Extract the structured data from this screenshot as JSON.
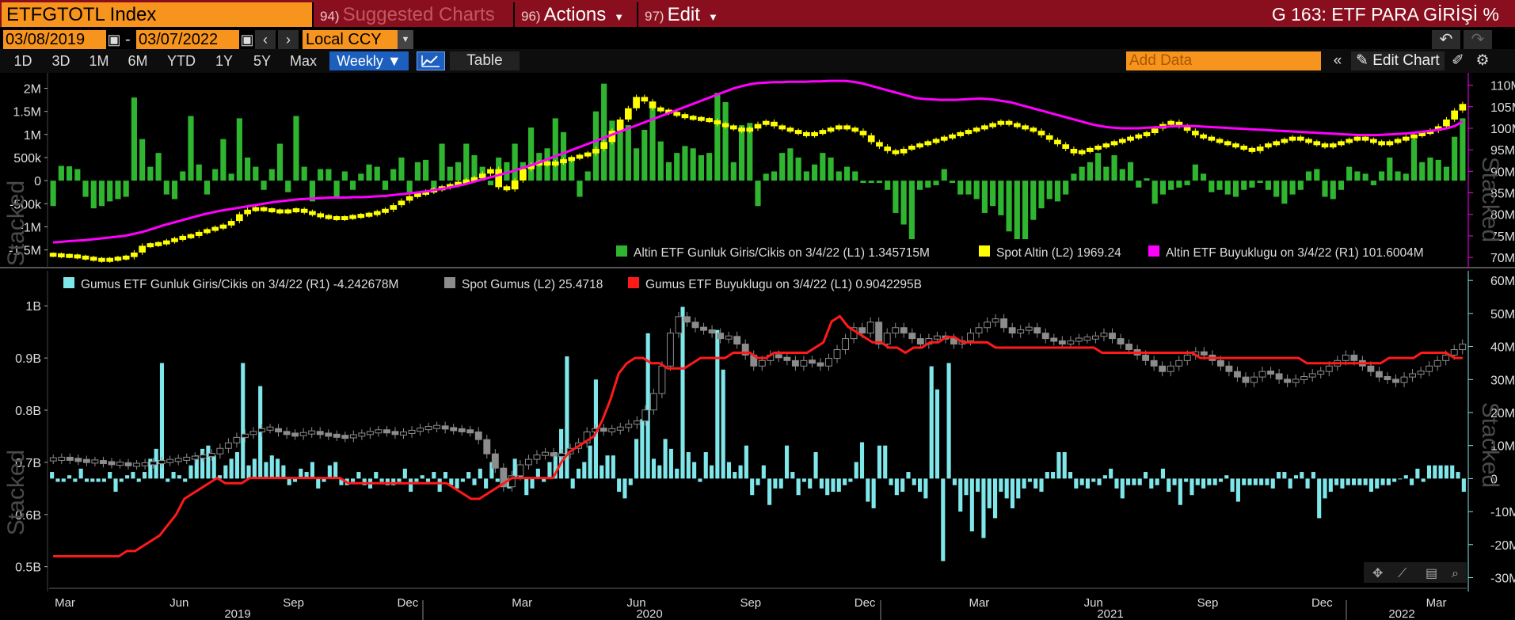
{
  "header": {
    "ticker": "ETFGTOTL Index",
    "menus": [
      {
        "num": "94)",
        "label": "Suggested Charts"
      },
      {
        "num": "96)",
        "label": "Actions"
      },
      {
        "num": "97)",
        "label": "Edit"
      }
    ],
    "title": "G 163: ETF PARA GİRİŞİ %"
  },
  "range": {
    "start": "03/08/2019",
    "end": "03/07/2022",
    "sep": "-",
    "currency": "Local CCY"
  },
  "toolbar": {
    "periods": [
      "1D",
      "3D",
      "1M",
      "6M",
      "YTD",
      "1Y",
      "5Y",
      "Max"
    ],
    "frequency": "Weekly ▼",
    "table_label": "Table",
    "add_data_placeholder": "Add Data",
    "edit_chart_label": "Edit Chart",
    "collapse_label": "«"
  },
  "colors": {
    "gold_flow": "#2fb52f",
    "gold_spot": "#ffff00",
    "gold_size": "#ff00ff",
    "silver_flow": "#7fe6ea",
    "silver_spot": "#8c8c8c",
    "silver_size": "#ff1a1a"
  },
  "chart_data": [
    {
      "type": "bar",
      "panel": "top",
      "stacked_label": "Stacked",
      "left_ticks": [
        "2M",
        "1.5M",
        "1M",
        "500k",
        "0",
        "-500k",
        "-1M",
        "-1.5M"
      ],
      "right_ticks": [
        "110M",
        "105M",
        "100M",
        "95M",
        "90M",
        "85M",
        "80M",
        "75M",
        "70M"
      ],
      "legend": [
        "Altin ETF Gunluk Giris/Cikis on 3/4/22 (L1) 1.345715M",
        "Spot Altin (L2) 1969.24",
        "Altin ETF Buyuklugu on 3/4/22 (R1) 101.6004M"
      ],
      "flow_values": [
        -0.55,
        0.32,
        0.31,
        0.25,
        -0.35,
        -0.6,
        -0.55,
        -0.45,
        -0.4,
        -0.35,
        1.8,
        0.9,
        0.3,
        0.6,
        -0.3,
        -0.4,
        0.2,
        1.4,
        0.35,
        -0.3,
        0.25,
        0.9,
        0.15,
        1.35,
        0.5,
        0.3,
        -0.2,
        0.25,
        0.8,
        -0.25,
        1.4,
        0.3,
        -0.45,
        0.25,
        0.25,
        -0.35,
        0.2,
        -0.2,
        0.15,
        0.35,
        0.3,
        -0.2,
        0.25,
        0.5,
        -0.25,
        0.4,
        0.45,
        -0.25,
        0.8,
        0.3,
        0.4,
        0.8,
        0.55,
        0.3,
        -0.1,
        0.5,
        0.4,
        0.8,
        0.4,
        1.15,
        0.6,
        0.7,
        1.35,
        1.05,
        0.5,
        -0.35,
        0.2,
        1.5,
        2.1,
        1.3,
        1.1,
        1.2,
        0.7,
        1.1,
        1.6,
        0.85,
        0.4,
        0.6,
        0.75,
        0.7,
        0.55,
        0.6,
        1.9,
        1.7,
        0.4,
        1.2,
        1.25,
        -0.55,
        0.15,
        0.2,
        0.6,
        0.7,
        0.5,
        0.2,
        0.35,
        0.6,
        0.5,
        0.2,
        0.3,
        0.2,
        -0.05,
        -0.05,
        -0.05,
        -0.2,
        -0.7,
        -0.95,
        -1.35,
        -0.2,
        -0.15,
        -0.1,
        0.25,
        -0.05,
        -0.3,
        -0.3,
        -0.4,
        -0.7,
        -0.55,
        -0.75,
        -1.1,
        -1.3,
        -1.45,
        -0.85,
        -0.6,
        -0.4,
        -0.45,
        -0.3,
        0.15,
        0.3,
        0.4,
        0.6,
        0.3,
        0.55,
        0.25,
        0.4,
        -0.15,
        0.05,
        -0.5,
        -0.3,
        -0.2,
        -0.15,
        -0.1,
        0.35,
        0.15,
        -0.25,
        -0.2,
        -0.3,
        -0.35,
        -0.2,
        -0.15,
        -0.05,
        -0.2,
        -0.35,
        -0.5,
        -0.3,
        -0.2,
        0.2,
        0.25,
        -0.35,
        -0.4,
        -0.2,
        0.3,
        0.2,
        0.15,
        -0.1,
        0.2,
        0.5,
        0.2,
        0.15,
        0.9,
        0.4,
        0.5,
        0.45,
        0.3,
        0.95,
        1.35
      ],
      "spot_gold": [
        1300,
        1295,
        1295,
        1290,
        1285,
        1280,
        1275,
        1280,
        1285,
        1290,
        1310,
        1340,
        1345,
        1350,
        1360,
        1370,
        1380,
        1385,
        1400,
        1410,
        1420,
        1430,
        1450,
        1480,
        1500,
        1505,
        1500,
        1495,
        1490,
        1495,
        1500,
        1490,
        1480,
        1470,
        1465,
        1460,
        1465,
        1470,
        1475,
        1480,
        1490,
        1500,
        1520,
        1540,
        1560,
        1570,
        1580,
        1590,
        1600,
        1610,
        1620,
        1630,
        1640,
        1660,
        1680,
        1600,
        1590,
        1630,
        1680,
        1700,
        1710,
        1700,
        1710,
        1720,
        1730,
        1740,
        1750,
        1770,
        1800,
        1850,
        1900,
        1950,
        2000,
        1980,
        1950,
        1940,
        1930,
        1920,
        1910,
        1905,
        1900,
        1895,
        1880,
        1870,
        1860,
        1850,
        1860,
        1880,
        1890,
        1870,
        1860,
        1850,
        1840,
        1830,
        1840,
        1850,
        1860,
        1870,
        1860,
        1850,
        1830,
        1800,
        1780,
        1760,
        1750,
        1770,
        1780,
        1790,
        1800,
        1810,
        1820,
        1830,
        1840,
        1850,
        1860,
        1870,
        1880,
        1890,
        1880,
        1870,
        1860,
        1850,
        1830,
        1810,
        1790,
        1770,
        1750,
        1760,
        1770,
        1780,
        1790,
        1800,
        1810,
        1820,
        1830,
        1840,
        1860,
        1880,
        1890,
        1870,
        1850,
        1830,
        1820,
        1810,
        1800,
        1790,
        1780,
        1770,
        1760,
        1780,
        1790,
        1800,
        1810,
        1820,
        1810,
        1800,
        1790,
        1780,
        1790,
        1800,
        1810,
        1820,
        1810,
        1800,
        1790,
        1800,
        1810,
        1820,
        1830,
        1840,
        1850,
        1870,
        1900,
        1940,
        1969
      ],
      "etf_size": [
        73.5,
        73.6,
        73.8,
        73.9,
        74.0,
        74.2,
        74.4,
        74.6,
        74.8,
        75.0,
        75.4,
        75.8,
        76.3,
        76.9,
        77.5,
        78.0,
        78.5,
        79.0,
        79.5,
        80.0,
        80.4,
        80.8,
        81.1,
        81.4,
        81.7,
        82.0,
        82.3,
        82.6,
        82.9,
        83.1,
        83.3,
        83.5,
        83.6,
        83.7,
        83.8,
        83.9,
        83.9,
        83.9,
        84.0,
        84.0,
        84.1,
        84.2,
        84.3,
        84.5,
        84.7,
        84.9,
        85.1,
        85.3,
        85.6,
        85.9,
        86.2,
        86.6,
        87.0,
        87.5,
        88.0,
        88.5,
        89.0,
        89.5,
        90.0,
        90.6,
        91.2,
        91.8,
        92.5,
        93.2,
        93.9,
        94.6,
        95.3,
        96.0,
        96.7,
        97.4,
        98.1,
        98.8,
        99.5,
        100.2,
        100.9,
        101.6,
        102.3,
        103.0,
        103.7,
        104.4,
        105.1,
        105.8,
        106.5,
        107.2,
        107.9,
        108.6,
        109.3,
        109.8,
        110.2,
        110.5,
        110.6,
        110.7,
        110.7,
        110.8,
        110.8,
        110.8,
        110.9,
        110.9,
        111.0,
        111.0,
        111.0,
        110.8,
        110.5,
        110.0,
        109.5,
        109.0,
        108.5,
        108.0,
        107.5,
        107.0,
        106.8,
        106.7,
        106.6,
        106.6,
        106.6,
        106.7,
        106.8,
        106.9,
        106.8,
        106.6,
        106.3,
        106.0,
        105.5,
        105.0,
        104.5,
        104.0,
        103.5,
        103.0,
        102.5,
        102.0,
        101.5,
        101.0,
        100.6,
        100.3,
        100.1,
        100.0,
        100.0,
        100.0,
        100.1,
        100.2,
        100.3,
        100.4,
        100.5,
        100.5,
        100.5,
        100.4,
        100.3,
        100.2,
        100.1,
        100.0,
        99.9,
        99.8,
        99.7,
        99.6,
        99.5,
        99.4,
        99.3,
        99.2,
        99.1,
        99.0,
        98.9,
        98.8,
        98.7,
        98.6,
        98.5,
        98.4,
        98.4,
        98.4,
        98.5,
        98.6,
        98.7,
        98.8,
        99.0,
        99.2,
        99.4,
        99.7,
        100.0,
        100.5,
        101.6
      ],
      "spot_range": [
        1250,
        2100
      ],
      "flow_range": [
        -1.85,
        2.3
      ],
      "size_range": [
        68,
        112.5
      ]
    },
    {
      "type": "bar",
      "panel": "bottom",
      "stacked_label": "Stacked",
      "left_ticks": [
        "1B",
        "0.9B",
        "0.8B",
        "0.7B",
        "0.6B",
        "0.5B"
      ],
      "right_ticks": [
        "60M",
        "50M",
        "40M",
        "30M",
        "20M",
        "10M",
        "0",
        "-10M",
        "-20M",
        "-30M"
      ],
      "legend": [
        "Gumus ETF Gunluk Giris/Cikis on 3/4/22 (R1) -4.242678M",
        "Spot Gumus (L2) 25.4718",
        "Gumus ETF Buyuklugu on 3/4/22 (L1) 0.9042295B"
      ],
      "flow_values": [
        2,
        -1,
        -1,
        1,
        -1,
        3,
        -1,
        -1,
        -1,
        -1,
        2,
        -4,
        -1,
        1,
        2,
        -1,
        2,
        6,
        9,
        35,
        -1,
        2,
        1,
        -1,
        4,
        7,
        9,
        10,
        7,
        1,
        4,
        6,
        8,
        35,
        4,
        6,
        28,
        5,
        7,
        6,
        4,
        -2,
        -1,
        3,
        2,
        5,
        -3,
        -1,
        4,
        5,
        -2,
        -2,
        -1,
        2,
        -2,
        -3,
        2,
        -1,
        -2,
        -2,
        -1,
        3,
        -4,
        -1,
        1,
        -1,
        2,
        -4,
        2,
        -2,
        -3,
        -1,
        2,
        -2,
        3,
        -3,
        5,
        -1,
        2,
        -3,
        6,
        2,
        -5,
        -3,
        3,
        -1,
        5,
        8,
        15,
        37,
        -3,
        3,
        5,
        10,
        30,
        4,
        7,
        7,
        -4,
        -6,
        -2,
        12,
        18,
        44,
        6,
        4,
        12,
        9,
        3,
        52,
        8,
        5,
        -1,
        8,
        4,
        45,
        33,
        5,
        2,
        4,
        10,
        -5,
        -2,
        4,
        -8,
        -3,
        -3,
        10,
        2,
        -5,
        -1,
        -3,
        8,
        -3,
        -5,
        -4,
        -4,
        -2,
        -1,
        5,
        11,
        -7,
        -9,
        10,
        10,
        -2,
        -5,
        -4,
        2,
        -2,
        -4,
        -6,
        34,
        27,
        -25,
        35,
        -2,
        -10,
        -5,
        -16,
        -4,
        -18,
        -9,
        -12,
        -4,
        -6,
        -9,
        -6,
        -3,
        -1,
        -3,
        -4,
        2,
        2,
        8,
        8,
        2,
        -3,
        -2,
        -3,
        -1,
        -2,
        1,
        3,
        -3,
        -6,
        -2,
        -2,
        -2,
        2,
        -3,
        -2,
        3,
        -4,
        -2,
        -8,
        -1,
        -5,
        -2,
        -3,
        -2,
        -2,
        -1,
        1,
        -4,
        -7,
        -2,
        -2,
        -2,
        -2,
        -2,
        -3,
        2,
        2,
        -3,
        1,
        2,
        -3,
        2,
        -12,
        -6,
        -4,
        -2,
        -3,
        -2,
        -2,
        -2,
        -2,
        -4,
        -3,
        -2,
        -2,
        -1,
        0,
        1,
        -2,
        3,
        -1,
        4,
        4,
        4,
        4,
        4,
        2,
        -4
      ],
      "spot_silver": [
        15.0,
        15.1,
        15.0,
        14.9,
        14.8,
        14.8,
        14.7,
        14.6,
        14.6,
        14.5,
        14.5,
        14.6,
        14.7,
        14.8,
        14.9,
        15.0,
        15.1,
        15.2,
        15.3,
        15.5,
        16.0,
        16.5,
        17.0,
        17.3,
        17.5,
        17.8,
        17.8,
        17.5,
        17.3,
        17.2,
        17.4,
        17.5,
        17.3,
        17.2,
        17.1,
        17.0,
        17.2,
        17.3,
        17.5,
        17.6,
        17.5,
        17.3,
        17.4,
        17.6,
        17.8,
        17.9,
        18.0,
        17.8,
        17.7,
        17.6,
        17.5,
        16.8,
        15.5,
        14.2,
        12.5,
        13.5,
        14.5,
        15.0,
        15.4,
        15.6,
        15.3,
        15.5,
        16.0,
        16.5,
        17.5,
        17.8,
        17.6,
        17.7,
        17.9,
        18.2,
        18.5,
        19.5,
        21.0,
        23.5,
        26.5,
        28.0,
        27.5,
        27.0,
        26.8,
        26.5,
        26.0,
        26.2,
        25.5,
        24.5,
        23.5,
        24.0,
        24.5,
        24.3,
        24.0,
        23.5,
        24.0,
        23.8,
        23.5,
        24.2,
        25.0,
        26.0,
        27.0,
        26.5,
        27.5,
        25.5,
        26.5,
        27.0,
        26.5,
        26.0,
        25.5,
        26.0,
        26.2,
        26.0,
        25.5,
        25.8,
        26.5,
        27.0,
        27.5,
        27.8,
        27.0,
        26.5,
        26.8,
        27.0,
        26.5,
        26.0,
        25.8,
        25.5,
        25.8,
        26.0,
        26.0,
        26.2,
        26.5,
        26.0,
        25.5,
        25.0,
        24.5,
        24.0,
        23.5,
        23.0,
        23.5,
        24.0,
        24.5,
        24.8,
        24.5,
        24.0,
        23.5,
        23.0,
        22.5,
        22.0,
        22.5,
        23.0,
        22.8,
        22.3,
        22.0,
        22.3,
        22.5,
        22.8,
        23.0,
        23.5,
        24.0,
        24.5,
        24.0,
        23.5,
        23.0,
        22.5,
        22.3,
        22.0,
        22.5,
        22.8,
        23.0,
        23.5,
        24.0,
        24.5,
        25.0,
        25.5
      ],
      "etf_size": [
        0.52,
        0.52,
        0.52,
        0.52,
        0.52,
        0.52,
        0.52,
        0.52,
        0.52,
        0.53,
        0.53,
        0.54,
        0.55,
        0.56,
        0.58,
        0.6,
        0.63,
        0.64,
        0.65,
        0.66,
        0.67,
        0.66,
        0.66,
        0.66,
        0.67,
        0.67,
        0.67,
        0.67,
        0.67,
        0.67,
        0.67,
        0.67,
        0.67,
        0.67,
        0.67,
        0.67,
        0.66,
        0.66,
        0.66,
        0.66,
        0.66,
        0.66,
        0.66,
        0.66,
        0.66,
        0.66,
        0.66,
        0.66,
        0.66,
        0.65,
        0.64,
        0.63,
        0.63,
        0.64,
        0.65,
        0.66,
        0.67,
        0.67,
        0.67,
        0.67,
        0.67,
        0.67,
        0.7,
        0.72,
        0.73,
        0.74,
        0.75,
        0.78,
        0.82,
        0.87,
        0.89,
        0.9,
        0.9,
        0.89,
        0.89,
        0.88,
        0.88,
        0.88,
        0.89,
        0.9,
        0.9,
        0.9,
        0.9,
        0.91,
        0.91,
        0.91,
        0.9,
        0.9,
        0.91,
        0.91,
        0.91,
        0.91,
        0.91,
        0.92,
        0.93,
        0.97,
        0.98,
        0.96,
        0.95,
        0.94,
        0.93,
        0.93,
        0.92,
        0.92,
        0.91,
        0.92,
        0.92,
        0.93,
        0.93,
        0.94,
        0.94,
        0.93,
        0.93,
        0.93,
        0.93,
        0.92,
        0.92,
        0.92,
        0.92,
        0.92,
        0.92,
        0.92,
        0.92,
        0.92,
        0.92,
        0.92,
        0.92,
        0.92,
        0.91,
        0.91,
        0.91,
        0.91,
        0.91,
        0.91,
        0.91,
        0.91,
        0.91,
        0.91,
        0.91,
        0.91,
        0.9,
        0.9,
        0.9,
        0.9,
        0.9,
        0.9,
        0.9,
        0.9,
        0.9,
        0.9,
        0.9,
        0.9,
        0.9,
        0.89,
        0.89,
        0.89,
        0.89,
        0.89,
        0.89,
        0.89,
        0.89,
        0.89,
        0.89,
        0.9,
        0.9,
        0.9,
        0.9,
        0.91,
        0.91,
        0.91,
        0.91,
        0.9,
        0.9
      ],
      "silver_range": [
        3.32,
        31.6
      ],
      "flow_range": [
        -33,
        61
      ],
      "size_range": [
        0.46,
        1.055
      ]
    }
  ],
  "x_axis": {
    "months": [
      "Mar",
      "Jun",
      "Sep",
      "Dec",
      "Mar",
      "Jun",
      "Sep",
      "Dec",
      "Mar",
      "Jun",
      "Sep",
      "Dec",
      "Mar"
    ],
    "years": [
      "2019",
      "2020",
      "2021",
      "2022"
    ]
  }
}
